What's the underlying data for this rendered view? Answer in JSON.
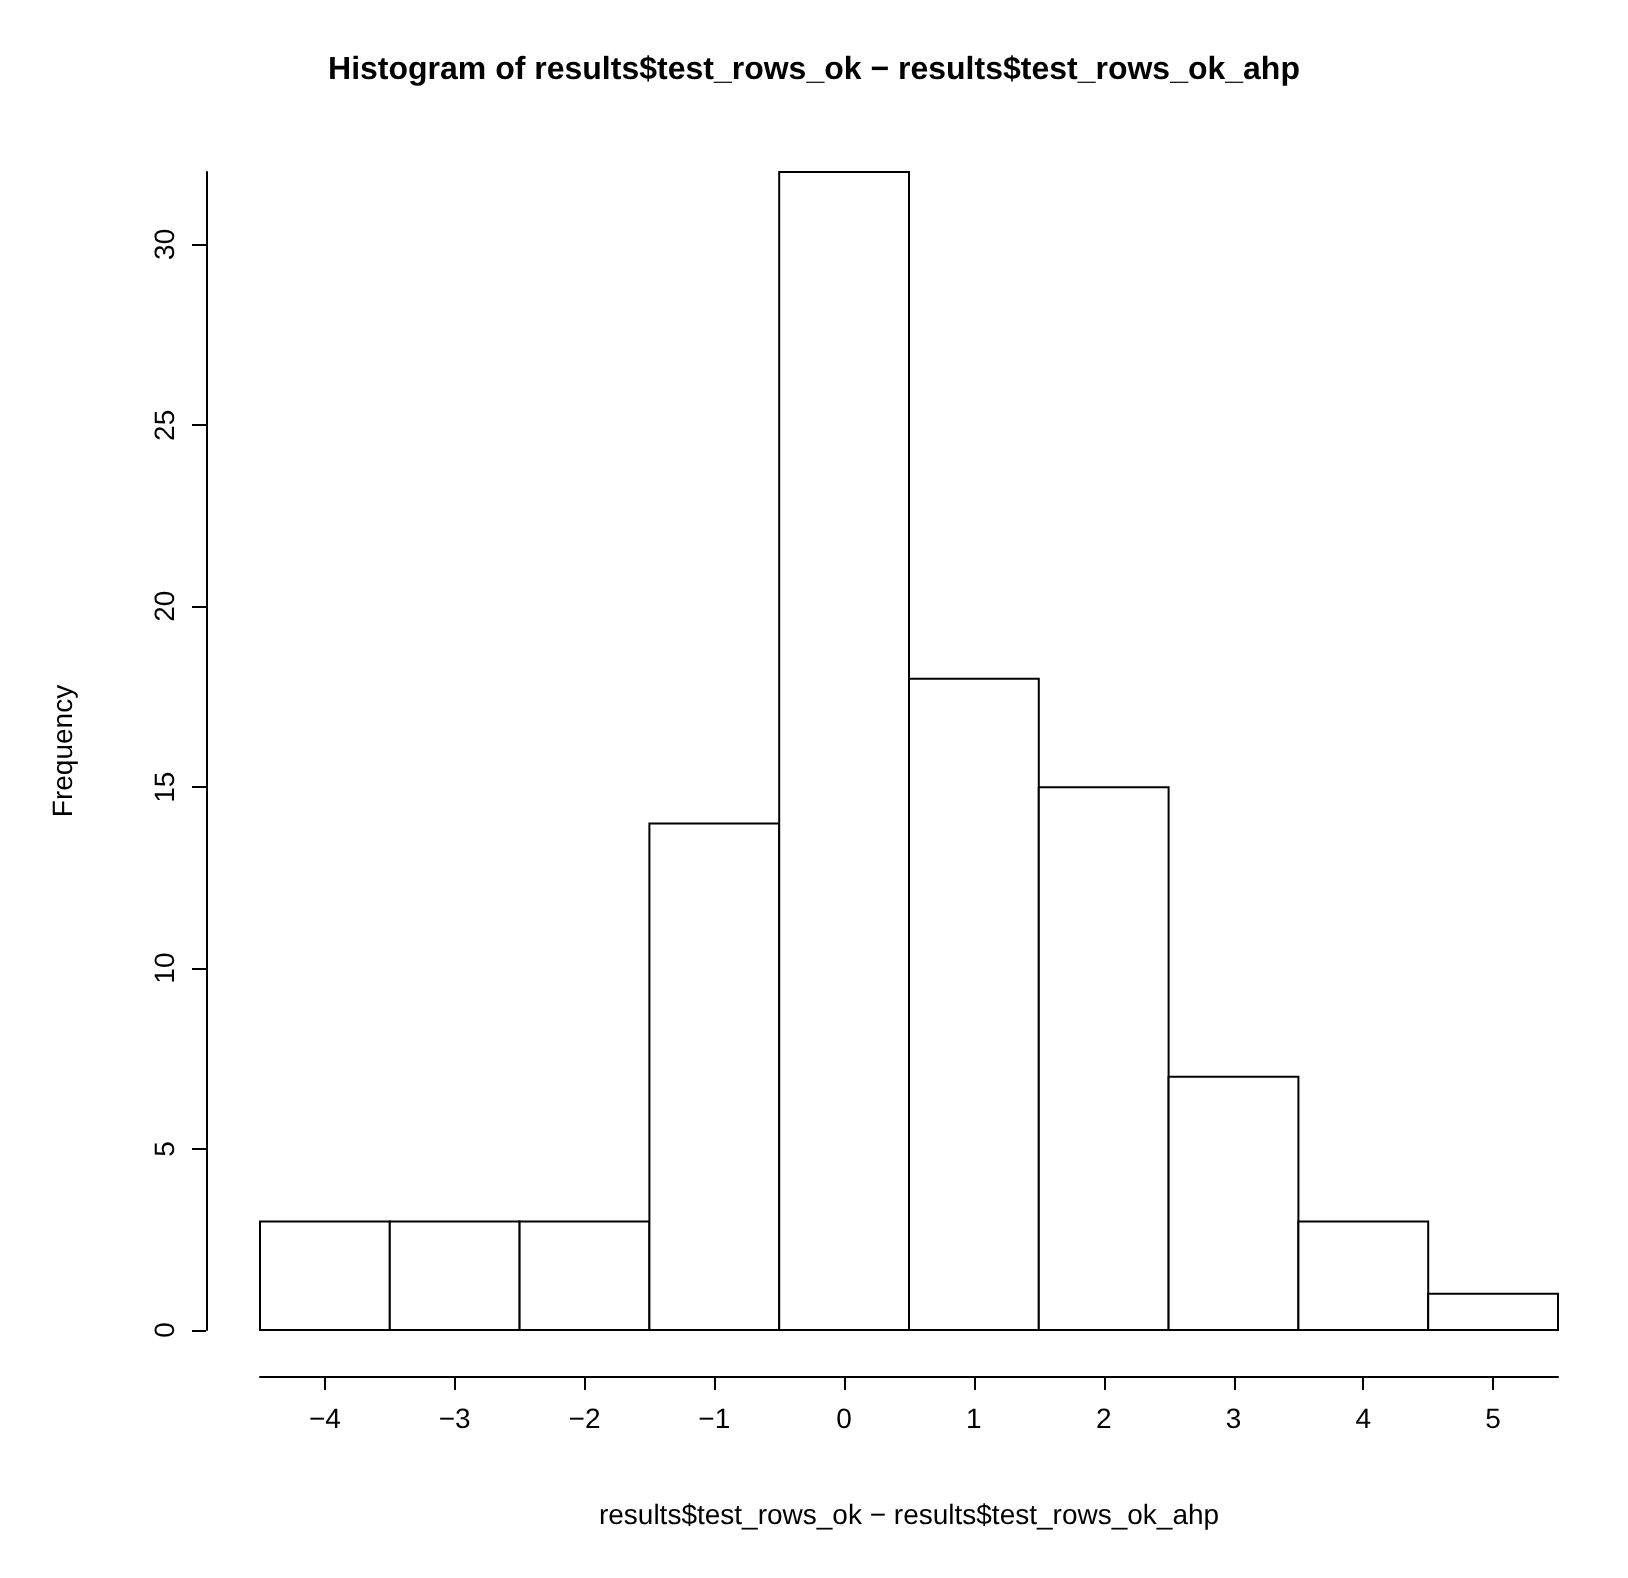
{
  "chart_data": {
    "type": "histogram",
    "title": "Histogram of results$test_rows_ok − results$test_rows_ok_ahp",
    "xlabel": "results$test_rows_ok − results$test_rows_ok_ahp",
    "ylabel": "Frequency",
    "bins": [
      -4.5,
      -3.5,
      -2.5,
      -1.5,
      -0.5,
      0.5,
      1.5,
      2.5,
      3.5,
      4.5,
      5.5
    ],
    "values": [
      3,
      3,
      3,
      14,
      32,
      18,
      15,
      7,
      3,
      1
    ],
    "color": "#ffffff",
    "xlim": [
      -4.5,
      5.5
    ],
    "xticks": [
      {
        "value": -4,
        "label": "−4"
      },
      {
        "value": -3,
        "label": "−3"
      },
      {
        "value": -2,
        "label": "−2"
      },
      {
        "value": -1,
        "label": "−1"
      },
      0,
      1,
      2,
      3,
      4,
      5
    ],
    "ylim": [
      0,
      32
    ],
    "yticks": [
      0,
      5,
      10,
      15,
      20,
      25,
      30
    ]
  }
}
